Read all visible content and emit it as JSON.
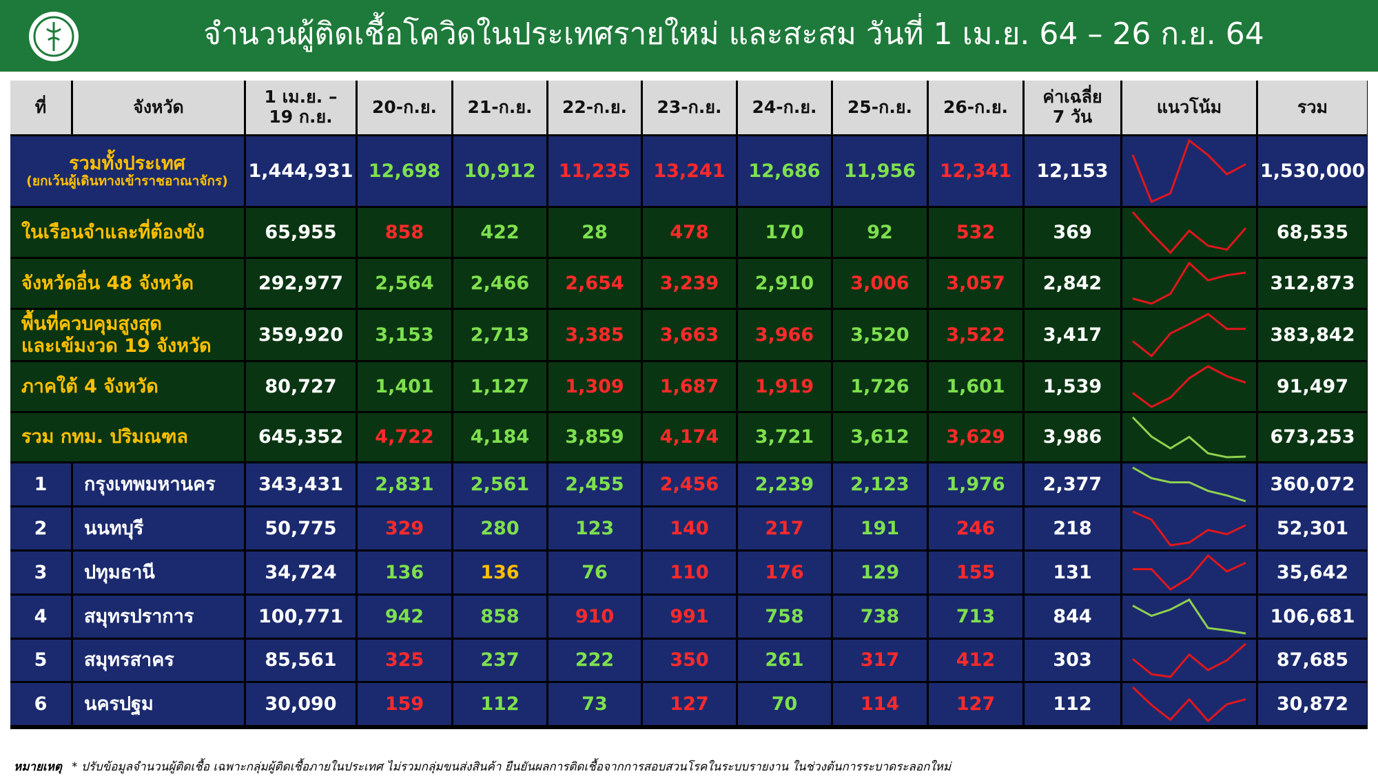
{
  "header": {
    "title": "จำนวนผู้ติดเชื้อโควิดในประเทศรายใหม่ และสะสม วันที่ 1 เม.ย. 64 – 26 ก.ย. 64"
  },
  "table": {
    "columns": [
      "ที่",
      "จังหวัด",
      [
        "1 เม.ย. –",
        "19 ก.ย."
      ],
      "20-ก.ย.",
      "21-ก.ย.",
      "22-ก.ย.",
      "23-ก.ย.",
      "24-ก.ย.",
      "25-ก.ย.",
      "26-ก.ย.",
      [
        "ค่าเฉลี่ย",
        "7 วัน"
      ],
      "แนวโน้ม",
      "รวม"
    ],
    "rows": [
      {
        "name": [
          "รวมทั้งประเทศ",
          "(ยกเว้นผู้เดินทางเข้าราชอาณาจักร)"
        ],
        "before": "1,444,931",
        "daily": [
          "12,698",
          "10,912",
          "11,235",
          "13,241",
          "12,686",
          "11,956",
          "12,341"
        ],
        "daily_colors": [
          "#7ee04e",
          "#7ee04e",
          "#ff2a2a",
          "#ff2a2a",
          "#7ee04e",
          "#7ee04e",
          "#ff2a2a"
        ],
        "avg": "12,153",
        "trend_color": "#e0161c",
        "total": "1,530,000",
        "background": "#1b2a6e",
        "label_color": "#ffc000"
      },
      {
        "name": [
          "ในเรือนจำและที่ต้องขัง"
        ],
        "before": "65,955",
        "daily": [
          "858",
          "422",
          "28",
          "478",
          "170",
          "92",
          "532"
        ],
        "daily_colors": [
          "#ff2a2a",
          "#7ee04e",
          "#7ee04e",
          "#ff2a2a",
          "#7ee04e",
          "#7ee04e",
          "#ff2a2a"
        ],
        "avg": "369",
        "trend_color": "#e0161c",
        "total": "68,535",
        "background": "#0a3512",
        "label_color": "#ffc000"
      },
      {
        "name": [
          "จังหวัดอื่น 48 จังหวัด"
        ],
        "before": "292,977",
        "daily": [
          "2,564",
          "2,466",
          "2,654",
          "3,239",
          "2,910",
          "3,006",
          "3,057"
        ],
        "daily_colors": [
          "#7ee04e",
          "#7ee04e",
          "#ff2a2a",
          "#ff2a2a",
          "#7ee04e",
          "#ff2a2a",
          "#ff2a2a"
        ],
        "avg": "2,842",
        "trend_color": "#e0161c",
        "total": "312,873",
        "background": "#0a3512",
        "label_color": "#ffc000"
      },
      {
        "name": [
          "พื้นที่ควบคุมสูงสุด",
          "และเข้มงวด 19 จังหวัด"
        ],
        "before": "359,920",
        "daily": [
          "3,153",
          "2,713",
          "3,385",
          "3,663",
          "3,966",
          "3,520",
          "3,522"
        ],
        "daily_colors": [
          "#7ee04e",
          "#7ee04e",
          "#ff2a2a",
          "#ff2a2a",
          "#ff2a2a",
          "#7ee04e",
          "#ff2a2a"
        ],
        "avg": "3,417",
        "trend_color": "#e0161c",
        "total": "383,842",
        "background": "#0a3512",
        "label_color": "#ffc000"
      },
      {
        "name": [
          "ภาคใต้ 4 จังหวัด"
        ],
        "before": "80,727",
        "daily": [
          "1,401",
          "1,127",
          "1,309",
          "1,687",
          "1,919",
          "1,726",
          "1,601"
        ],
        "daily_colors": [
          "#7ee04e",
          "#7ee04e",
          "#ff2a2a",
          "#ff2a2a",
          "#ff2a2a",
          "#7ee04e",
          "#7ee04e"
        ],
        "avg": "1,539",
        "trend_color": "#e0161c",
        "total": "91,497",
        "background": "#0a3512",
        "label_color": "#ffc000"
      },
      {
        "name": [
          "รวม กทม. ปริมณฑล"
        ],
        "before": "645,352",
        "daily": [
          "4,722",
          "4,184",
          "3,859",
          "4,174",
          "3,721",
          "3,612",
          "3,629"
        ],
        "daily_colors": [
          "#ff2a2a",
          "#7ee04e",
          "#7ee04e",
          "#ff2a2a",
          "#7ee04e",
          "#7ee04e",
          "#ff2a2a"
        ],
        "avg": "3,986",
        "trend_color": "#8fd14f",
        "total": "673,253",
        "background": "#0a3512",
        "label_color": "#ffc000"
      },
      {
        "no": "1",
        "name": [
          "กรุงเทพมหานคร"
        ],
        "before": "343,431",
        "daily": [
          "2,831",
          "2,561",
          "2,455",
          "2,456",
          "2,239",
          "2,123",
          "1,976"
        ],
        "daily_colors": [
          "#7ee04e",
          "#7ee04e",
          "#7ee04e",
          "#ff2a2a",
          "#7ee04e",
          "#7ee04e",
          "#7ee04e"
        ],
        "avg": "2,377",
        "trend_color": "#8fd14f",
        "total": "360,072",
        "background": "#1b2a6e",
        "label_color": "#ffffff"
      },
      {
        "no": "2",
        "name": [
          "นนทบุรี"
        ],
        "before": "50,775",
        "daily": [
          "329",
          "280",
          "123",
          "140",
          "217",
          "191",
          "246"
        ],
        "daily_colors": [
          "#ff2a2a",
          "#7ee04e",
          "#7ee04e",
          "#ff2a2a",
          "#ff2a2a",
          "#7ee04e",
          "#ff2a2a"
        ],
        "avg": "218",
        "trend_color": "#e0161c",
        "total": "52,301",
        "background": "#1b2a6e",
        "label_color": "#ffffff"
      },
      {
        "no": "3",
        "name": [
          "ปทุมธานี"
        ],
        "before": "34,724",
        "daily": [
          "136",
          "136",
          "76",
          "110",
          "176",
          "129",
          "155"
        ],
        "daily_colors": [
          "#7ee04e",
          "#ffc000",
          "#7ee04e",
          "#ff2a2a",
          "#ff2a2a",
          "#7ee04e",
          "#ff2a2a"
        ],
        "avg": "131",
        "trend_color": "#e0161c",
        "total": "35,642",
        "background": "#1b2a6e",
        "label_color": "#ffffff"
      },
      {
        "no": "4",
        "name": [
          "สมุทรปราการ"
        ],
        "before": "100,771",
        "daily": [
          "942",
          "858",
          "910",
          "991",
          "758",
          "738",
          "713"
        ],
        "daily_colors": [
          "#7ee04e",
          "#7ee04e",
          "#ff2a2a",
          "#ff2a2a",
          "#7ee04e",
          "#7ee04e",
          "#7ee04e"
        ],
        "avg": "844",
        "trend_color": "#8fd14f",
        "total": "106,681",
        "background": "#1b2a6e",
        "label_color": "#ffffff"
      },
      {
        "no": "5",
        "name": [
          "สมุทรสาคร"
        ],
        "before": "85,561",
        "daily": [
          "325",
          "237",
          "222",
          "350",
          "261",
          "317",
          "412"
        ],
        "daily_colors": [
          "#ff2a2a",
          "#7ee04e",
          "#7ee04e",
          "#ff2a2a",
          "#7ee04e",
          "#ff2a2a",
          "#ff2a2a"
        ],
        "avg": "303",
        "trend_color": "#e0161c",
        "total": "87,685",
        "background": "#1b2a6e",
        "label_color": "#ffffff"
      },
      {
        "no": "6",
        "name": [
          "นครปฐม"
        ],
        "before": "30,090",
        "daily": [
          "159",
          "112",
          "73",
          "127",
          "70",
          "114",
          "127"
        ],
        "daily_colors": [
          "#ff2a2a",
          "#7ee04e",
          "#7ee04e",
          "#ff2a2a",
          "#7ee04e",
          "#ff2a2a",
          "#ff2a2a"
        ],
        "avg": "112",
        "trend_color": "#e0161c",
        "total": "30,872",
        "background": "#1b2a6e",
        "label_color": "#ffffff"
      }
    ]
  },
  "footer": {
    "label": "หมายเหตุ",
    "note": "* ปรับข้อมูลจำนวนผู้ติดเชื้อ เฉพาะกลุ่มผู้ติดเชื้อภายในประเทศ ไม่รวมกลุ่มขนส่งสินค้า ยืนยันผลการติดเชื้อจากการสอบสวนโรคในระบบรายงาน ในช่วงต้นการระบาดระลอกใหม่"
  }
}
